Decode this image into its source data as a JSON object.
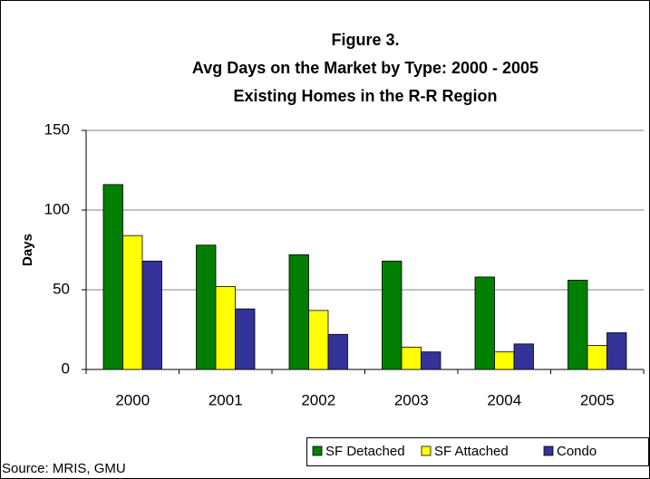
{
  "chart_data": {
    "type": "bar",
    "title": "Figure 3.",
    "subtitle": "Avg Days on the Market by Type: 2000 - 2005",
    "subtitle2": "Existing Homes in the R-R Region",
    "y_label": "Days",
    "source": "Source: MRIS, GMU",
    "categories": [
      "2000",
      "2001",
      "2002",
      "2003",
      "2004",
      "2005"
    ],
    "series": [
      {
        "name": "SF Detached",
        "color": "#007f00",
        "values": [
          116,
          78,
          72,
          68,
          58,
          56
        ]
      },
      {
        "name": "SF Attached",
        "color": "#ffff00",
        "values": [
          84,
          52,
          37,
          14,
          11,
          15
        ]
      },
      {
        "name": "Condo",
        "color": "#333399",
        "values": [
          68,
          38,
          22,
          11,
          16,
          23
        ]
      }
    ],
    "ylim": [
      0,
      150
    ],
    "yticks": [
      0,
      50,
      100,
      150
    ],
    "grid": true,
    "legend": "bottom-right"
  }
}
